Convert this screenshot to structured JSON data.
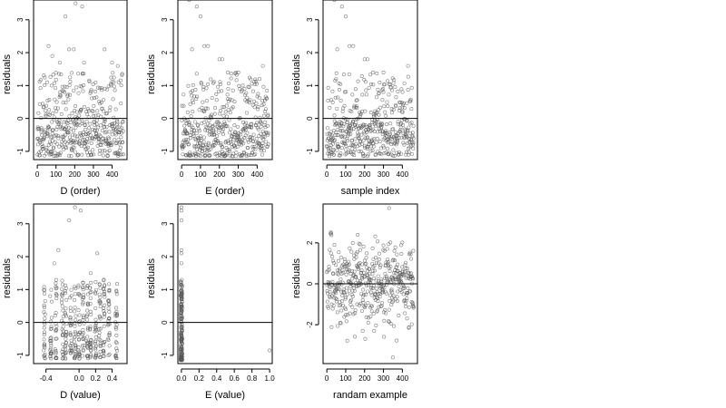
{
  "chart_data": [
    {
      "type": "scatter",
      "xlabel": "D (order)",
      "ylabel": "residuals",
      "xlim": [
        -20,
        480
      ],
      "ylim": [
        -1.25,
        3.6
      ],
      "xticks": [
        0,
        100,
        200,
        300,
        400
      ],
      "yticks": [
        -1,
        0,
        1,
        2,
        3
      ],
      "hline": 0,
      "points": {
        "mode": "order",
        "seed": 11,
        "n": 460,
        "ymin": -1.15,
        "ymax": 1.4,
        "outliers": [
          [
            60,
            2.2
          ],
          [
            80,
            1.9
          ],
          [
            120,
            1.7
          ],
          [
            150,
            3.1
          ],
          [
            170,
            2.1
          ],
          [
            195,
            2.1
          ],
          [
            205,
            3.5
          ],
          [
            240,
            3.4
          ],
          [
            250,
            1.7
          ],
          [
            360,
            2.1
          ],
          [
            400,
            1.7
          ],
          [
            430,
            1.6
          ]
        ]
      }
    },
    {
      "type": "scatter",
      "xlabel": "E (order)",
      "ylabel": "residuals",
      "xlim": [
        -20,
        480
      ],
      "ylim": [
        -1.25,
        3.6
      ],
      "xticks": [
        0,
        100,
        200,
        300,
        400
      ],
      "yticks": [
        -1,
        0,
        1,
        2,
        3
      ],
      "hline": 0,
      "points": {
        "mode": "order",
        "seed": 23,
        "n": 460,
        "ymin": -1.15,
        "ymax": 1.4,
        "outliers": [
          [
            40,
            3.6
          ],
          [
            80,
            3.4
          ],
          [
            100,
            3.1
          ],
          [
            55,
            2.1
          ],
          [
            120,
            2.2
          ],
          [
            140,
            2.2
          ],
          [
            200,
            1.8
          ],
          [
            215,
            1.8
          ],
          [
            245,
            1.4
          ],
          [
            300,
            1.4
          ],
          [
            430,
            1.6
          ]
        ]
      }
    },
    {
      "type": "scatter",
      "xlabel": "sample index",
      "ylabel": "residuals",
      "xlim": [
        -20,
        480
      ],
      "ylim": [
        -1.25,
        3.6
      ],
      "xticks": [
        0,
        100,
        200,
        300,
        400
      ],
      "yticks": [
        -1,
        0,
        1,
        2,
        3
      ],
      "hline": 0,
      "points": {
        "mode": "order",
        "seed": 37,
        "n": 460,
        "ymin": -1.15,
        "ymax": 1.4,
        "outliers": [
          [
            40,
            3.6
          ],
          [
            80,
            3.4
          ],
          [
            100,
            3.1
          ],
          [
            55,
            2.1
          ],
          [
            120,
            2.2
          ],
          [
            140,
            2.2
          ],
          [
            200,
            1.8
          ],
          [
            215,
            1.8
          ],
          [
            245,
            1.4
          ],
          [
            300,
            1.4
          ],
          [
            430,
            1.6
          ]
        ]
      }
    },
    {
      "type": "scatter",
      "xlabel": "D (value)",
      "ylabel": "residuals",
      "xlim": [
        -0.55,
        0.58
      ],
      "ylim": [
        -1.25,
        3.6
      ],
      "xticks": [
        -0.4,
        0.0,
        0.2,
        0.4
      ],
      "xtick_labels": [
        "-0.4",
        "0.0",
        "0.2",
        "0.4"
      ],
      "yticks": [
        -1,
        0,
        1,
        2,
        3
      ],
      "hline": 0,
      "points": {
        "mode": "columns",
        "seed": 51,
        "columns": [
          -0.42,
          -0.34,
          -0.28,
          -0.2,
          -0.16,
          -0.1,
          -0.05,
          0.0,
          0.05,
          0.1,
          0.14,
          0.2,
          0.25,
          0.3,
          0.36,
          0.45
        ],
        "per_column": 26,
        "ymin": -1.1,
        "ymax": 1.3,
        "outliers": [
          [
            -0.25,
            2.2
          ],
          [
            -0.12,
            3.1
          ],
          [
            -0.05,
            3.5
          ],
          [
            0.02,
            3.4
          ],
          [
            0.22,
            2.1
          ],
          [
            0.14,
            1.5
          ],
          [
            -0.3,
            1.8
          ],
          [
            0.3,
            1.3
          ]
        ]
      }
    },
    {
      "type": "scatter",
      "xlabel": "E (value)",
      "ylabel": "residuals",
      "xlim": [
        -0.04,
        1.03
      ],
      "ylim": [
        -1.25,
        3.6
      ],
      "xticks": [
        0.0,
        0.2,
        0.4,
        0.6,
        0.8,
        1.0
      ],
      "xtick_labels": [
        "0.0",
        "0.2",
        "0.4",
        "0.6",
        "0.8",
        "1.0"
      ],
      "yticks": [
        -1,
        0,
        1,
        2,
        3
      ],
      "hline": 0,
      "points": {
        "mode": "columns",
        "seed": 67,
        "columns": [
          0.0
        ],
        "per_column": 160,
        "ymin": -1.15,
        "ymax": 1.3,
        "outliers": [
          [
            0.0,
            3.5
          ],
          [
            0.0,
            3.4
          ],
          [
            0.0,
            3.1
          ],
          [
            0.0,
            2.2
          ],
          [
            0.0,
            2.1
          ],
          [
            0.0,
            1.8
          ],
          [
            1.0,
            -0.85
          ]
        ]
      }
    },
    {
      "type": "scatter",
      "xlabel": "randam example",
      "ylabel": "residuals",
      "xlim": [
        -20,
        480
      ],
      "ylim": [
        -3.9,
        3.9
      ],
      "xticks": [
        0,
        100,
        200,
        300,
        400
      ],
      "yticks": [
        -2,
        0,
        2
      ],
      "hline": 0,
      "points": {
        "mode": "normal",
        "seed": 83,
        "n": 460,
        "sd": 1.0,
        "outliers": [
          [
            330,
            3.7
          ],
          [
            350,
            -3.6
          ],
          [
            190,
            -2.3
          ]
        ]
      }
    }
  ]
}
